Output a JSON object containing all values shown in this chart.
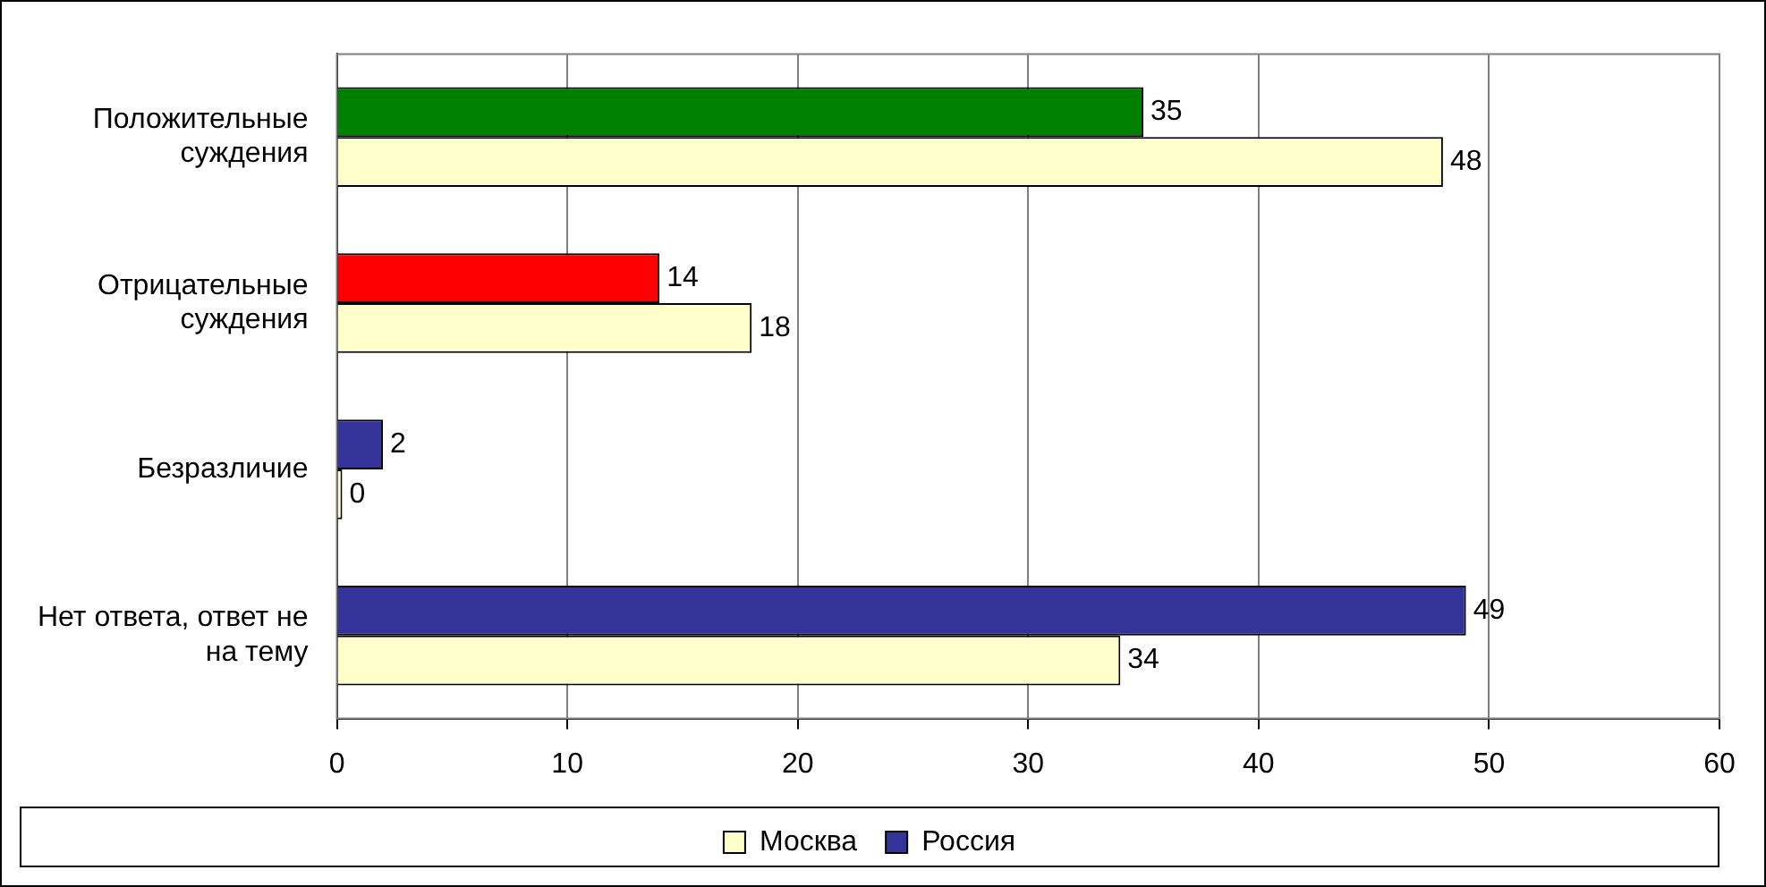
{
  "chart_data": {
    "type": "bar",
    "orientation": "horizontal",
    "categories": [
      "Положительные суждения",
      "Отрицательные суждения",
      "Безразличие",
      "Нет ответа, ответ не на тему"
    ],
    "series": [
      {
        "name": "Россия",
        "color": "#333399",
        "colors": [
          "#008000",
          "#ff0000",
          "#333399",
          "#333399"
        ],
        "values": [
          35,
          14,
          2,
          49
        ]
      },
      {
        "name": "Москва",
        "color": "#ffffcc",
        "values": [
          48,
          18,
          0,
          34
        ]
      }
    ],
    "xlim": [
      0,
      60
    ],
    "xticks": [
      0,
      10,
      20,
      30,
      40,
      50,
      60
    ],
    "grid": "x",
    "legend": "bottom",
    "data_labels": true
  }
}
